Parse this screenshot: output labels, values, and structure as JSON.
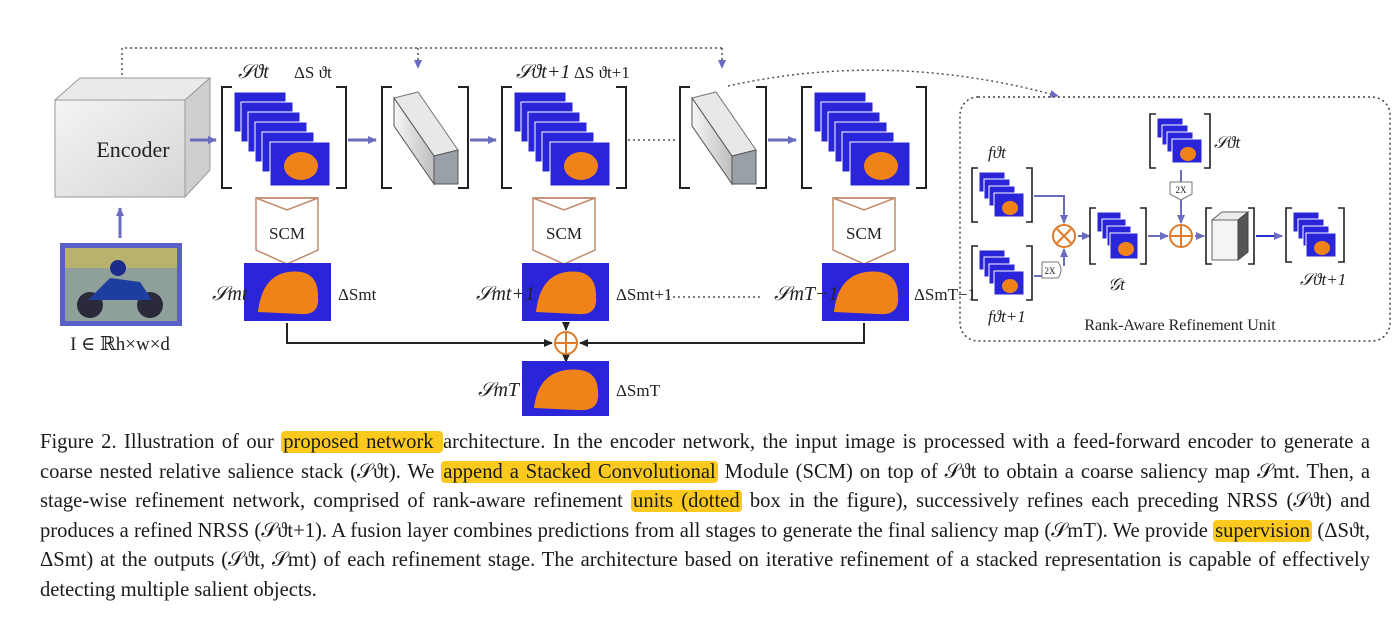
{
  "diagram": {
    "encoder_label": "Encoder",
    "input_label": "I ∈ ℝh×w×d",
    "scm_label": "SCM",
    "ru_title": "Rank-Aware Refinement Unit",
    "upsample_label": "2X",
    "stack_labels": {
      "s_t": "𝒮ϑt",
      "d_t": "ΔS ϑt",
      "s_t1": "𝒮ϑt+1",
      "d_t1": "ΔS ϑt+1"
    },
    "map_labels": {
      "sm_t": "𝒮mt",
      "dm_t": "ΔSmt",
      "sm_t1": "𝒮mt+1",
      "dm_t1": "ΔSmt+1",
      "sm_T1": "𝒮mT−1",
      "dm_T1": "ΔSmT−1",
      "sm_T": "𝒮mT",
      "dm_T": "ΔSmT"
    },
    "ru_labels": {
      "f_t": "fϑt",
      "f_t1": "fϑt+1",
      "g_t": "𝒢t",
      "s_t": "𝒮ϑt",
      "s_t1": "𝒮ϑt+1"
    },
    "colors": {
      "map_blue": "#2a25d8",
      "salient_orange": "#f0821a",
      "arrow_purple": "#6b6cc0",
      "highlight": "#fcca1f"
    }
  },
  "caption": {
    "p1": "Figure 2. Illustration of our ",
    "h1": "proposed network ",
    "p2": "architecture. In the encoder network, the input image is processed with a feed-forward encoder to generate a coarse nested relative salience stack (𝒮ϑt). We ",
    "h2": "append a Stacked Convolutional",
    "p3": " Module (SCM) on top of 𝒮ϑt to obtain a coarse saliency map 𝒮mt. Then, a stage-wise refinement network, comprised of rank-aware refinement ",
    "h3": "units (dotted",
    "p4": " box in the figure), successively refines each preceding NRSS (𝒮ϑt) and produces a refined NRSS (𝒮ϑt+1). A fusion layer combines predictions from all stages to generate the final saliency map (𝒮mT). We provide ",
    "h4": "supervision",
    "p5": " (ΔSϑt, ΔSmt) at the outputs (𝒮ϑt, 𝒮mt) of each refinement stage. The architecture based on iterative refinement of a stacked representation is capable of effectively detecting multiple salient objects."
  }
}
